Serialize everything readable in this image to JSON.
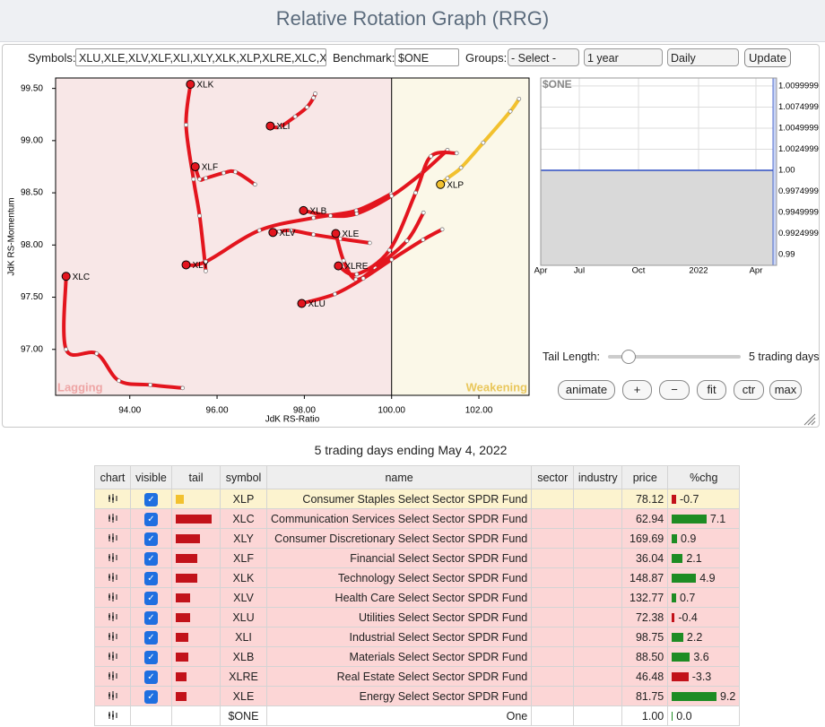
{
  "header": {
    "title": "Relative Rotation Graph (RRG)"
  },
  "controls": {
    "symbols_label": "Symbols:",
    "symbols": "XLU,XLE,XLV,XLF,XLI,XLY,XLK,XLP,XLRE,XLC,XLB",
    "benchmark_label": "Benchmark:",
    "benchmark": "$ONE",
    "groups_label": "Groups:",
    "groups": "- Select -",
    "period": "1 year",
    "interval": "Daily",
    "update": "Update"
  },
  "chart_data": [
    {
      "type": "rrg",
      "xlabel": "JdK RS-Ratio",
      "ylabel": "JdK RS-Momentum",
      "xlim": [
        92.3,
        103.15
      ],
      "ylim": [
        96.56,
        99.6
      ],
      "center": 100,
      "xticks": [
        {
          "value": 94,
          "label": "94.00"
        },
        {
          "value": 96,
          "label": "96.00"
        },
        {
          "value": 98,
          "label": "98.00"
        },
        {
          "value": 100,
          "label": "100.00"
        },
        {
          "value": 102,
          "label": "102.00"
        }
      ],
      "yticks": [
        {
          "value": 97,
          "label": "97.00"
        },
        {
          "value": 97.5,
          "label": "97.50"
        },
        {
          "value": 98,
          "label": "98.00"
        },
        {
          "value": 98.5,
          "label": "98.50"
        },
        {
          "value": 99,
          "label": "99.00"
        },
        {
          "value": 99.5,
          "label": "99.50"
        }
      ],
      "quadrant_labels": {
        "lagging": "Lagging",
        "weakening": "Weakening"
      },
      "series": [
        {
          "name": "XLK",
          "color": "#e3151e",
          "x": [
            95.74,
            95.72,
            95.6,
            95.46,
            95.29,
            95.39
          ],
          "y": [
            97.75,
            97.84,
            98.28,
            98.63,
            99.15,
            99.54
          ]
        },
        {
          "name": "XLI",
          "color": "#e3151e",
          "x": [
            98.25,
            98.21,
            98.06,
            97.79,
            97.43,
            97.22
          ],
          "y": [
            99.45,
            99.41,
            99.32,
            99.23,
            99.13,
            99.14
          ]
        },
        {
          "name": "XLF",
          "color": "#e3151e",
          "x": [
            96.87,
            96.42,
            96.15,
            95.74,
            95.6,
            95.5
          ],
          "y": [
            98.58,
            98.7,
            98.69,
            98.64,
            98.63,
            98.75
          ]
        },
        {
          "name": "XLY",
          "color": "#e3151e",
          "x": [
            99.99,
            99.19,
            98.21,
            96.97,
            95.74,
            95.29
          ],
          "y": [
            98.49,
            98.33,
            98.26,
            98.14,
            97.84,
            97.81
          ]
        },
        {
          "name": "XLC",
          "color": "#e3151e",
          "x": [
            95.21,
            94.47,
            93.75,
            93.24,
            92.54,
            92.54
          ],
          "y": [
            96.63,
            96.66,
            96.7,
            96.96,
            97.0,
            97.7
          ]
        },
        {
          "name": "XLV",
          "color": "#e3151e",
          "x": [
            99.5,
            98.82,
            98.21,
            97.69,
            97.43,
            97.28
          ],
          "y": [
            98.02,
            98.06,
            98.1,
            98.14,
            98.13,
            98.12
          ]
        },
        {
          "name": "XLE",
          "color": "#e3151e",
          "x": [
            100.73,
            100.35,
            99.62,
            99.18,
            98.9,
            98.72
          ],
          "y": [
            98.31,
            98.04,
            97.78,
            97.67,
            97.85,
            98.11
          ]
        },
        {
          "name": "XLB",
          "color": "#e3151e",
          "x": [
            101.28,
            100.7,
            100.0,
            99.2,
            98.6,
            97.98
          ],
          "y": [
            98.91,
            98.69,
            98.47,
            98.3,
            98.28,
            98.33
          ]
        },
        {
          "name": "XLRE",
          "color": "#e3151e",
          "x": [
            101.49,
            100.9,
            100.55,
            99.95,
            99.2,
            98.78
          ],
          "y": [
            98.88,
            98.85,
            98.5,
            97.95,
            97.72,
            97.8
          ]
        },
        {
          "name": "XLU",
          "color": "#e3151e",
          "x": [
            101.16,
            100.72,
            100.0,
            99.35,
            98.7,
            97.94
          ],
          "y": [
            98.15,
            98.05,
            97.86,
            97.68,
            97.53,
            97.44
          ]
        },
        {
          "name": "XLP",
          "color": "#f2c12e",
          "x": [
            102.92,
            102.72,
            102.1,
            101.59,
            101.28,
            101.12
          ],
          "y": [
            99.4,
            99.28,
            98.98,
            98.74,
            98.64,
            98.58
          ]
        }
      ]
    },
    {
      "type": "line",
      "title": "$ONE",
      "color": "#2f4fc4",
      "values": [
        1,
        1
      ],
      "ylim": [
        0.98873,
        1.01095
      ],
      "yticks": [
        0.99,
        0.9924999,
        0.9949999,
        0.9974999,
        {
          "value": 1,
          "label": "1.00"
        },
        1.0024999,
        1.0049999,
        1.0074999,
        1.0099999
      ],
      "xticks": [
        "Apr",
        "Jul",
        "Oct",
        "2022",
        "Apr"
      ]
    }
  ],
  "tail_control": {
    "label": "Tail Length:",
    "value_text": "5 trading days"
  },
  "buttons": [
    "animate",
    "+",
    "−",
    "fit",
    "ctr",
    "max"
  ],
  "table": {
    "caption": "5 trading days ending May 4, 2022",
    "columns": [
      "chart",
      "visible",
      "tail",
      "symbol",
      "name",
      "sector",
      "industry",
      "price",
      "%chg"
    ],
    "rows": [
      {
        "visible": true,
        "tail": 9,
        "symbol": "XLP",
        "name": "Consumer Staples Select Sector SPDR Fund",
        "price": "78.12",
        "chg": -0.7
      },
      {
        "visible": true,
        "tail": 40,
        "symbol": "XLC",
        "name": "Communication Services Select Sector SPDR Fund",
        "price": "62.94",
        "chg": 7.1
      },
      {
        "visible": true,
        "tail": 27,
        "symbol": "XLY",
        "name": "Consumer Discretionary Select Sector SPDR Fund",
        "price": "169.69",
        "chg": 0.9
      },
      {
        "visible": true,
        "tail": 24,
        "symbol": "XLF",
        "name": "Financial Select Sector SPDR Fund",
        "price": "36.04",
        "chg": 2.1
      },
      {
        "visible": true,
        "tail": 24,
        "symbol": "XLK",
        "name": "Technology Select Sector SPDR Fund",
        "price": "148.87",
        "chg": 4.9
      },
      {
        "visible": true,
        "tail": 16,
        "symbol": "XLV",
        "name": "Health Care Select Sector SPDR Fund",
        "price": "132.77",
        "chg": 0.7
      },
      {
        "visible": true,
        "tail": 16,
        "symbol": "XLU",
        "name": "Utilities Select Sector SPDR Fund",
        "price": "72.38",
        "chg": -0.4
      },
      {
        "visible": true,
        "tail": 14,
        "symbol": "XLI",
        "name": "Industrial Select Sector SPDR Fund",
        "price": "98.75",
        "chg": 2.2
      },
      {
        "visible": true,
        "tail": 14,
        "symbol": "XLB",
        "name": "Materials Select Sector SPDR Fund",
        "price": "88.50",
        "chg": 3.6
      },
      {
        "visible": true,
        "tail": 12,
        "symbol": "XLRE",
        "name": "Real Estate Select Sector SPDR Fund",
        "price": "46.48",
        "chg": -3.3
      },
      {
        "visible": true,
        "tail": 12,
        "symbol": "XLE",
        "name": "Energy Select Sector SPDR Fund",
        "price": "81.75",
        "chg": 9.2
      },
      {
        "visible": null,
        "tail": null,
        "symbol": "$ONE",
        "name": "One",
        "price": "1.00",
        "chg": {
          "value": 0,
          "label": "0.0"
        }
      }
    ]
  }
}
